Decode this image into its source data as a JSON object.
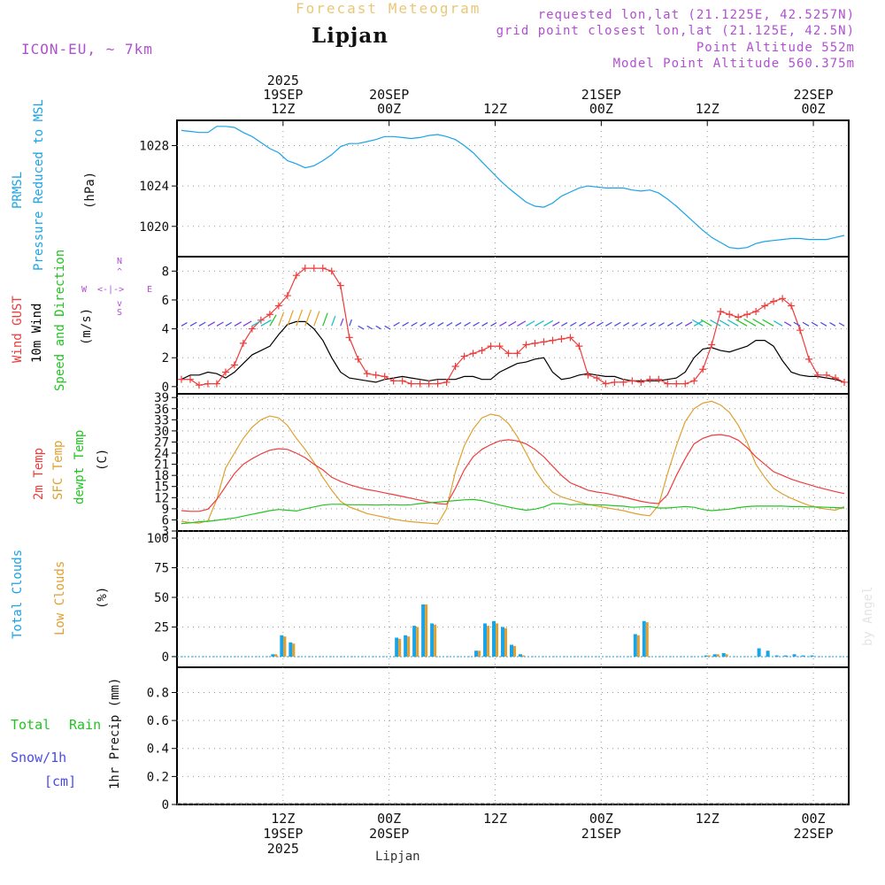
{
  "header": {
    "product": "Forecast Meteogram",
    "location": "Lipjan",
    "model": "ICON-EU, ~ 7km",
    "requested": "requested lon,lat (21.1225E, 42.5257N)",
    "gridpoint": "grid point closest lon,lat (21.125E, 42.5N)",
    "point_alt": "Point Altitude 552m",
    "model_alt": "Model Point Altitude 560.375m",
    "credit": "by Angel",
    "footer": "Lipjan"
  },
  "colors": {
    "pressure": "#1aa3e6",
    "gust": "#ee3c3c",
    "wind": "#000000",
    "temp2m": "#ee3c3c",
    "sfc": "#e0a030",
    "dewpt": "#22c422",
    "total_clouds": "#1aa3e6",
    "low_clouds": "#e0a030",
    "rain": "#22c422",
    "snow": "#4a4ae6",
    "magenta": "#b050d0",
    "header_gold": "#e8c878"
  },
  "axis_top": {
    "ticks": [
      {
        "t": 12,
        "lines": [
          "2025",
          "19SEP",
          "12Z"
        ]
      },
      {
        "t": 24,
        "lines": [
          "20SEP",
          "00Z"
        ]
      },
      {
        "t": 36,
        "lines": [
          "12Z"
        ]
      },
      {
        "t": 48,
        "lines": [
          "21SEP",
          "00Z"
        ]
      },
      {
        "t": 60,
        "lines": [
          "12Z"
        ]
      },
      {
        "t": 72,
        "lines": [
          "22SEP",
          "00Z"
        ]
      }
    ]
  },
  "axis_bottom": {
    "ticks": [
      {
        "t": 12,
        "lines": [
          "12Z",
          "19SEP",
          "2025"
        ]
      },
      {
        "t": 24,
        "lines": [
          "00Z",
          "20SEP"
        ]
      },
      {
        "t": 36,
        "lines": [
          "12Z"
        ]
      },
      {
        "t": 48,
        "lines": [
          "00Z",
          "21SEP"
        ]
      },
      {
        "t": 60,
        "lines": [
          "12Z"
        ]
      },
      {
        "t": 72,
        "lines": [
          "00Z",
          "22SEP"
        ]
      }
    ]
  },
  "labels": {
    "pressure": [
      "PRMSL",
      "Pressure Reduced to MSL",
      "(hPa)"
    ],
    "wind": [
      "Wind GUST",
      "10m Wind",
      "Speed and Direction",
      "(m/s)"
    ],
    "compass": {
      "n": "N",
      "s": "S",
      "w": "W",
      "e": "E"
    },
    "temp": [
      "2m Temp",
      "SFC Temp",
      "dewpt Temp",
      "(C)"
    ],
    "clouds": [
      "Total Clouds",
      "Low Clouds",
      "(%)"
    ],
    "precip": [
      "Total",
      "Rain",
      "Snow/1h",
      "[cm]",
      "1hr Precip (mm)"
    ]
  },
  "chart_data": [
    {
      "type": "line",
      "title": "PRMSL Pressure Reduced to MSL",
      "ylabel": "hPa",
      "x_unit": "hours from 2025-09-19 00Z",
      "ylim": [
        1017.0,
        1030.5
      ],
      "yticks": [
        1020,
        1024,
        1028
      ],
      "x": [
        0.5,
        1.5,
        2.5,
        3.5,
        4.5,
        5.5,
        6.5,
        7.5,
        8.5,
        9.5,
        10.5,
        11.5,
        12.5,
        13.5,
        14.5,
        15.5,
        16.5,
        17.5,
        18.5,
        19.5,
        20.5,
        21.5,
        22.5,
        23.5,
        24.5,
        25.5,
        26.5,
        27.5,
        28.5,
        29.5,
        30.5,
        31.5,
        32.5,
        33.5,
        34.5,
        35.5,
        36.5,
        37.5,
        38.5,
        39.5,
        40.5,
        41.5,
        42.5,
        43.5,
        44.5,
        45.5,
        46.5,
        47.5,
        48.5,
        49.5,
        50.5,
        51.5,
        52.5,
        53.5,
        54.5,
        55.5,
        56.5,
        57.5,
        58.5,
        59.5,
        60.5,
        61.5,
        62.5,
        63.5,
        64.5,
        65.5,
        66.5,
        67.5,
        68.5,
        69.5,
        70.5,
        71.5,
        72.5,
        73.5,
        74.5,
        75.5
      ],
      "series": [
        {
          "name": "PRMSL",
          "values": [
            1029.5,
            1029.4,
            1029.3,
            1029.3,
            1029.9,
            1029.9,
            1029.8,
            1029.3,
            1028.9,
            1028.3,
            1027.7,
            1027.3,
            1026.5,
            1026.2,
            1025.8,
            1026.0,
            1026.5,
            1027.1,
            1027.9,
            1028.2,
            1028.2,
            1028.4,
            1028.6,
            1028.9,
            1028.9,
            1028.8,
            1028.7,
            1028.8,
            1029.0,
            1029.1,
            1028.9,
            1028.6,
            1028.0,
            1027.3,
            1026.4,
            1025.5,
            1024.6,
            1023.8,
            1023.1,
            1022.4,
            1022.0,
            1021.9,
            1022.3,
            1023.0,
            1023.4,
            1023.8,
            1024.0,
            1023.9,
            1023.8,
            1023.8,
            1023.8,
            1023.6,
            1023.5,
            1023.6,
            1023.3,
            1022.7,
            1022.0,
            1021.2,
            1020.4,
            1019.6,
            1018.9,
            1018.4,
            1017.9,
            1017.8,
            1017.9,
            1018.3,
            1018.5,
            1018.6,
            1018.7,
            1018.8,
            1018.8,
            1018.7,
            1018.7,
            1018.7,
            1018.9,
            1019.1
          ]
        }
      ]
    },
    {
      "type": "line",
      "title": "Wind GUST / 10m Wind Speed and Direction",
      "ylabel": "m/s",
      "x_unit": "hours from 2025-09-19 00Z",
      "ylim": [
        -0.5,
        9.0
      ],
      "yticks": [
        0,
        2,
        4,
        6,
        8
      ],
      "x": [
        0.5,
        1.5,
        2.5,
        3.5,
        4.5,
        5.5,
        6.5,
        7.5,
        8.5,
        9.5,
        10.5,
        11.5,
        12.5,
        13.5,
        14.5,
        15.5,
        16.5,
        17.5,
        18.5,
        19.5,
        20.5,
        21.5,
        22.5,
        23.5,
        24.5,
        25.5,
        26.5,
        27.5,
        28.5,
        29.5,
        30.5,
        31.5,
        32.5,
        33.5,
        34.5,
        35.5,
        36.5,
        37.5,
        38.5,
        39.5,
        40.5,
        41.5,
        42.5,
        43.5,
        44.5,
        45.5,
        46.5,
        47.5,
        48.5,
        49.5,
        50.5,
        51.5,
        52.5,
        53.5,
        54.5,
        55.5,
        56.5,
        57.5,
        58.5,
        59.5,
        60.5,
        61.5,
        62.5,
        63.5,
        64.5,
        65.5,
        66.5,
        67.5,
        68.5,
        69.5,
        70.5,
        71.5,
        72.5,
        73.5,
        74.5,
        75.5
      ],
      "series": [
        {
          "name": "Wind GUST",
          "marker": "+",
          "values": [
            0.5,
            0.5,
            0.1,
            0.2,
            0.2,
            1.0,
            1.5,
            3.0,
            4.0,
            4.6,
            5.0,
            5.6,
            6.3,
            7.7,
            8.2,
            8.2,
            8.2,
            8.0,
            7.0,
            3.4,
            1.9,
            0.9,
            0.8,
            0.7,
            0.4,
            0.4,
            0.2,
            0.2,
            0.2,
            0.2,
            0.3,
            1.4,
            2.1,
            2.3,
            2.5,
            2.8,
            2.8,
            2.3,
            2.3,
            2.9,
            3.0,
            3.1,
            3.2,
            3.3,
            3.4,
            2.8,
            0.8,
            0.6,
            0.2,
            0.3,
            0.3,
            0.4,
            0.3,
            0.5,
            0.5,
            0.2,
            0.2,
            0.2,
            0.4,
            1.2,
            2.9,
            5.2,
            5.0,
            4.8,
            5.0,
            5.2,
            5.6,
            5.9,
            6.1,
            5.6,
            3.9,
            1.9,
            0.8,
            0.8,
            0.6,
            0.3
          ]
        },
        {
          "name": "10m Wind",
          "values": [
            0.5,
            0.8,
            0.8,
            1.0,
            0.9,
            0.6,
            1.0,
            1.6,
            2.2,
            2.5,
            2.8,
            3.6,
            4.3,
            4.5,
            4.5,
            4.0,
            3.2,
            2.0,
            1.0,
            0.6,
            0.5,
            0.4,
            0.3,
            0.5,
            0.6,
            0.7,
            0.6,
            0.5,
            0.4,
            0.5,
            0.5,
            0.5,
            0.7,
            0.7,
            0.5,
            0.5,
            1.0,
            1.3,
            1.6,
            1.7,
            1.9,
            2.0,
            1.0,
            0.5,
            0.6,
            0.8,
            0.9,
            0.8,
            0.7,
            0.7,
            0.5,
            0.4,
            0.4,
            0.4,
            0.4,
            0.5,
            0.6,
            1.0,
            2.0,
            2.6,
            2.7,
            2.5,
            2.4,
            2.6,
            2.8,
            3.2,
            3.2,
            2.8,
            1.8,
            1.0,
            0.8,
            0.7,
            0.7,
            0.6,
            0.5,
            0.3
          ]
        }
      ],
      "barbs_direction_deg": [
        60,
        60,
        60,
        60,
        60,
        60,
        60,
        60,
        60,
        60,
        30,
        20,
        20,
        20,
        20,
        20,
        20,
        20,
        20,
        20,
        120,
        120,
        120,
        120,
        60,
        60,
        60,
        60,
        60,
        60,
        60,
        60,
        60,
        60,
        60,
        60,
        60,
        60,
        60,
        60,
        60,
        60,
        60,
        60,
        60,
        60,
        60,
        60,
        60,
        60,
        60,
        60,
        60,
        60,
        60,
        60,
        60,
        60,
        60,
        300,
        300,
        300,
        300,
        300,
        300,
        300,
        300,
        300,
        300,
        300,
        300,
        300,
        300,
        300,
        300,
        300
      ]
    },
    {
      "type": "line",
      "title": "2m Temp / SFC Temp / dewpt Temp",
      "ylabel": "C",
      "x_unit": "hours from 2025-09-19 00Z",
      "ylim": [
        3,
        40
      ],
      "yticks": [
        3,
        6,
        9,
        12,
        15,
        18,
        21,
        24,
        27,
        30,
        33,
        36,
        39
      ],
      "x": [
        0.5,
        1.5,
        2.5,
        3.5,
        4.5,
        5.5,
        6.5,
        7.5,
        8.5,
        9.5,
        10.5,
        11.5,
        12.5,
        13.5,
        14.5,
        15.5,
        16.5,
        17.5,
        18.5,
        19.5,
        20.5,
        21.5,
        22.5,
        23.5,
        24.5,
        25.5,
        26.5,
        27.5,
        28.5,
        29.5,
        30.5,
        31.5,
        32.5,
        33.5,
        34.5,
        35.5,
        36.5,
        37.5,
        38.5,
        39.5,
        40.5,
        41.5,
        42.5,
        43.5,
        44.5,
        45.5,
        46.5,
        47.5,
        48.5,
        49.5,
        50.5,
        51.5,
        52.5,
        53.5,
        54.5,
        55.5,
        56.5,
        57.5,
        58.5,
        59.5,
        60.5,
        61.5,
        62.5,
        63.5,
        64.5,
        65.5,
        66.5,
        67.5,
        68.5,
        69.5,
        70.5,
        71.5,
        72.5,
        73.5,
        74.5,
        75.5
      ],
      "series": [
        {
          "name": "2m Temp",
          "values": [
            8.5,
            8.3,
            8.3,
            8.9,
            11.5,
            15.0,
            18.5,
            21.0,
            22.5,
            23.8,
            24.8,
            25.2,
            25.0,
            24.0,
            22.8,
            21.0,
            19.5,
            17.5,
            16.4,
            15.5,
            14.8,
            14.2,
            13.8,
            13.3,
            12.8,
            12.3,
            11.8,
            11.3,
            10.8,
            10.4,
            10.2,
            14.5,
            19.5,
            23.0,
            25.0,
            26.3,
            27.3,
            27.6,
            27.3,
            26.5,
            25.0,
            23.0,
            20.5,
            18.0,
            16.0,
            15.0,
            14.0,
            13.5,
            13.2,
            12.7,
            12.2,
            11.6,
            11.0,
            10.6,
            10.4,
            12.8,
            18.0,
            22.5,
            26.5,
            28.0,
            28.8,
            29.0,
            28.6,
            27.5,
            25.5,
            23.0,
            21.0,
            19.0,
            18.0,
            17.0,
            16.2,
            15.5,
            14.8,
            14.2,
            13.6,
            13.1
          ]
        },
        {
          "name": "SFC Temp",
          "values": [
            5.6,
            5.3,
            5.1,
            5.8,
            11.5,
            20.0,
            24.0,
            28.0,
            31.0,
            33.0,
            34.0,
            33.5,
            31.5,
            28.0,
            25.0,
            21.5,
            17.5,
            14.0,
            11.0,
            9.5,
            8.6,
            7.7,
            7.2,
            6.7,
            6.2,
            5.8,
            5.5,
            5.3,
            5.1,
            4.9,
            9.0,
            19.0,
            26.0,
            30.5,
            33.5,
            34.5,
            34.0,
            32.0,
            28.5,
            24.0,
            19.5,
            16.0,
            13.5,
            12.2,
            11.5,
            10.8,
            10.2,
            9.7,
            9.3,
            8.9,
            8.5,
            7.9,
            7.4,
            7.1,
            10.0,
            18.5,
            26.0,
            32.5,
            36.0,
            37.5,
            38.0,
            37.0,
            35.0,
            31.5,
            27.0,
            21.0,
            17.5,
            14.5,
            13.0,
            11.8,
            10.8,
            9.9,
            9.3,
            8.9,
            8.6,
            9.6
          ]
        },
        {
          "name": "dewpt Temp",
          "values": [
            5.0,
            5.2,
            5.5,
            5.6,
            5.9,
            6.2,
            6.5,
            7.0,
            7.5,
            8.0,
            8.5,
            8.8,
            8.6,
            8.4,
            9.0,
            9.5,
            10.0,
            10.2,
            10.2,
            10.1,
            10.1,
            10.1,
            10.0,
            10.1,
            10.1,
            10.0,
            10.1,
            10.4,
            10.6,
            10.8,
            11.0,
            11.2,
            11.4,
            11.5,
            11.2,
            10.6,
            10.0,
            9.5,
            9.0,
            8.6,
            8.9,
            9.5,
            10.4,
            10.4,
            10.1,
            10.2,
            10.1,
            10.1,
            10.0,
            9.8,
            9.7,
            9.4,
            9.5,
            9.6,
            9.2,
            9.2,
            9.4,
            9.6,
            9.4,
            8.8,
            8.5,
            8.7,
            8.9,
            9.3,
            9.6,
            9.7,
            9.7,
            9.7,
            9.7,
            9.6,
            9.6,
            9.5,
            9.5,
            9.4,
            9.3,
            9.2
          ]
        }
      ]
    },
    {
      "type": "bar",
      "title": "Total Clouds / Low Clouds",
      "ylabel": "%",
      "x_unit": "hours from 2025-09-19 00Z",
      "ylim": [
        -9,
        106
      ],
      "yticks": [
        0,
        25,
        50,
        75,
        100
      ],
      "bar_hours": [
        11,
        12,
        13,
        25,
        26,
        27,
        28,
        29,
        34,
        35,
        36,
        37,
        38,
        39,
        52,
        53,
        60,
        61,
        62,
        66,
        67,
        68,
        69,
        70,
        71,
        72
      ],
      "series": [
        {
          "name": "Total Clouds",
          "values": [
            2,
            18,
            12,
            16,
            18,
            26,
            44,
            28,
            5,
            28,
            30,
            25,
            10,
            2,
            19,
            30,
            1,
            2,
            3,
            7,
            5,
            1,
            1,
            2,
            1,
            1
          ]
        },
        {
          "name": "Low Clouds",
          "values": [
            2,
            17,
            11,
            15,
            17,
            25,
            44,
            27,
            5,
            26,
            28,
            24,
            9,
            1,
            18,
            29,
            1,
            2,
            2,
            0,
            0,
            0,
            0,
            0,
            0,
            0
          ]
        }
      ]
    },
    {
      "type": "bar",
      "title": "1hr Precip (mm)",
      "ylabel": "mm",
      "x_unit": "hours from 2025-09-19 00Z",
      "ylim": [
        0,
        0.98
      ],
      "yticks": [
        0,
        0.2,
        0.4,
        0.6,
        0.8
      ],
      "series": [
        {
          "name": "Total Rain",
          "values": []
        },
        {
          "name": "Snow/1h",
          "values": []
        }
      ]
    }
  ]
}
